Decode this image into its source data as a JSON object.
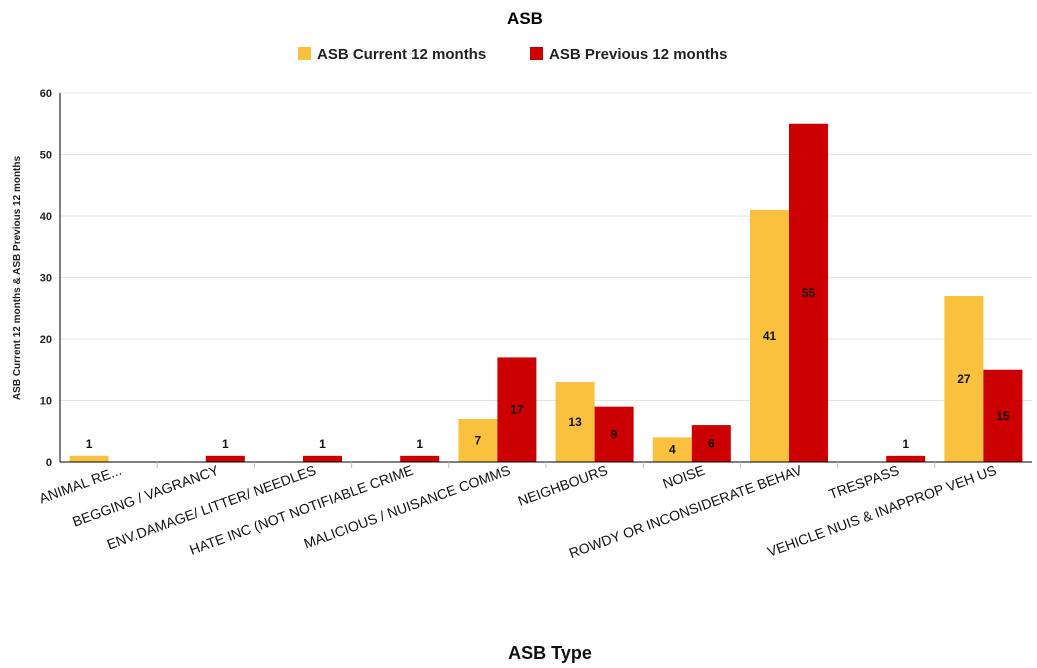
{
  "chart_data": {
    "type": "bar",
    "title": "ASB",
    "xlabel": "ASB Type",
    "ylabel": "ASB Current 12 months & ASB Previous 12 months",
    "ylim": [
      0,
      60
    ],
    "yticks": [
      0,
      10,
      20,
      30,
      40,
      50,
      60
    ],
    "grid": true,
    "legend_position": "top-center",
    "categories": [
      "ANIMAL RE...",
      "BEGGING / VAGRANCY",
      "ENV.DAMAGE/ LITTER/ NEEDLES",
      "HATE INC (NOT NOTIFIABLE CRIME",
      "MALICIOUS / NUISANCE COMMS",
      "NEIGHBOURS",
      "NOISE",
      "ROWDY OR INCONSIDERATE BEHAV",
      "TRESPASS",
      "VEHICLE NUIS & INAPPROP VEH US"
    ],
    "series": [
      {
        "name": "ASB Current 12 months",
        "color": "#f9c13d",
        "values": [
          1,
          null,
          null,
          null,
          7,
          13,
          4,
          41,
          null,
          27
        ]
      },
      {
        "name": "ASB Previous 12 months",
        "color": "#cc0000",
        "values": [
          null,
          1,
          1,
          1,
          17,
          9,
          6,
          55,
          1,
          15
        ]
      }
    ]
  }
}
